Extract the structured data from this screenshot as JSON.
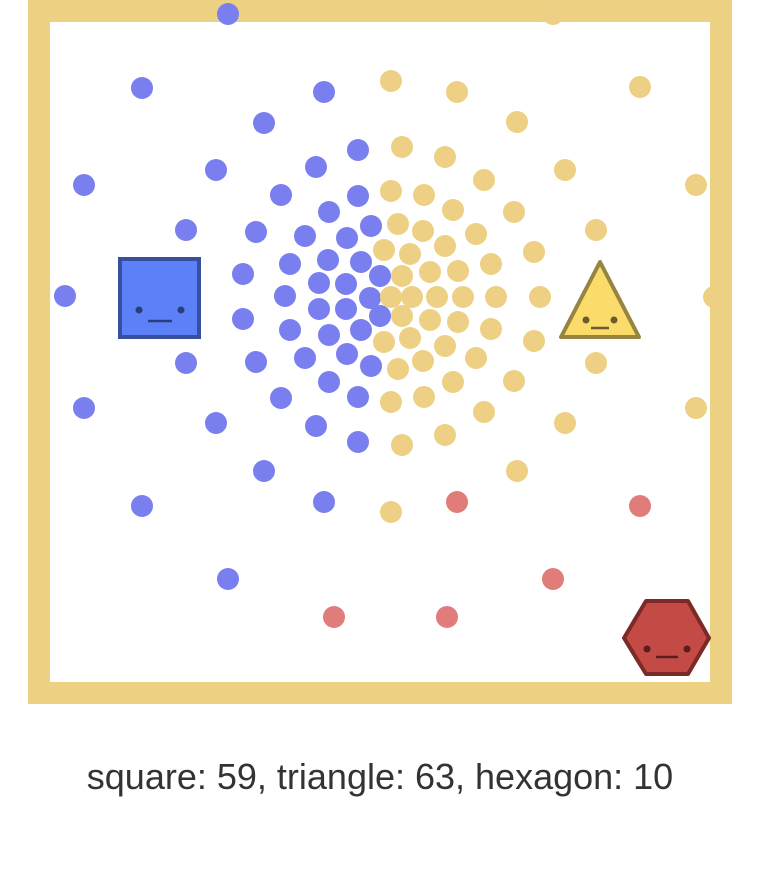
{
  "score_text": "square: 59, triangle: 63, hexagon: 10",
  "colors": {
    "frame": "#ecd182",
    "field": "#ffffff",
    "square_fill": "#5b80f7",
    "square_stroke": "#364f9e",
    "square_dots": "#7a7ff0",
    "triangle_fill": "#fbdc6b",
    "triangle_stroke": "#968541",
    "triangle_dots": "#edd083",
    "hexagon_fill": "#c44a45",
    "hexagon_stroke": "#7c2a28",
    "hexagon_dots": "#e07c7a"
  },
  "shapes": [
    {
      "name": "square",
      "count": 59
    },
    {
      "name": "triangle",
      "count": 63
    },
    {
      "name": "hexagon",
      "count": 10
    }
  ]
}
